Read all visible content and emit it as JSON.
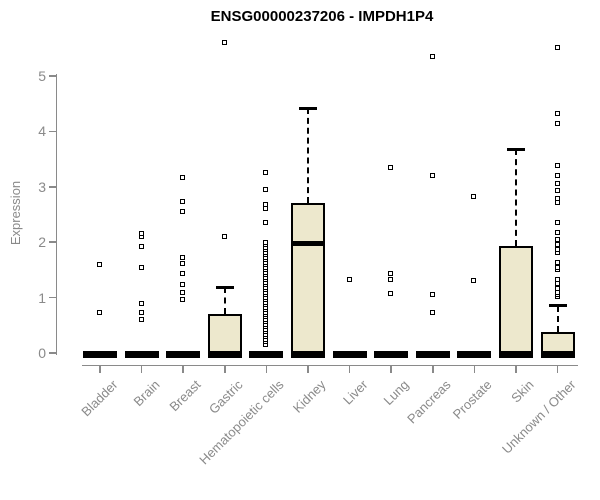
{
  "chart_data": {
    "type": "boxplot",
    "title": "ENSG00000237206 - IMPDH1P4",
    "ylabel": "Expression",
    "ylim": [
      0,
      5
    ],
    "yticks": [
      0,
      1,
      2,
      3,
      4,
      5
    ],
    "grid": false,
    "legend": false,
    "categories": [
      "Bladder",
      "Brain",
      "Breast",
      "Gastric",
      "Hematopoietic cells",
      "Kidney",
      "Liver",
      "Lung",
      "Pancreas",
      "Prostate",
      "Skin",
      "Unknown / Other"
    ],
    "series": [
      {
        "category": "Bladder",
        "q1": 0,
        "median": 0,
        "q3": 0,
        "whisker_low": 0,
        "whisker_high": 0,
        "outliers": [
          0.74,
          1.6
        ]
      },
      {
        "category": "Brain",
        "q1": 0,
        "median": 0,
        "q3": 0,
        "whisker_low": 0,
        "whisker_high": 0,
        "outliers": [
          0.6,
          0.74,
          0.9,
          1.55,
          1.93,
          2.11,
          2.15
        ]
      },
      {
        "category": "Breast",
        "q1": 0,
        "median": 0,
        "q3": 0,
        "whisker_low": 0,
        "whisker_high": 0,
        "outliers": [
          0.96,
          1.1,
          1.23,
          1.44,
          1.62,
          1.72,
          2.56,
          2.73,
          3.16
        ]
      },
      {
        "category": "Gastric",
        "q1": 0,
        "median": 0,
        "q3": 0.71,
        "whisker_low": 0,
        "whisker_high": 1.19,
        "outliers": [
          2.11,
          5.6
        ]
      },
      {
        "category": "Hematopoietic cells",
        "q1": 0,
        "median": 0,
        "q3": 0,
        "whisker_low": 0,
        "whisker_high": 0,
        "outliers": [
          0.16,
          0.2,
          0.25,
          0.29,
          0.34,
          0.38,
          0.43,
          0.47,
          0.52,
          0.56,
          0.61,
          0.65,
          0.7,
          0.74,
          0.79,
          0.83,
          0.88,
          0.92,
          0.97,
          1.01,
          1.06,
          1.1,
          1.15,
          1.19,
          1.24,
          1.28,
          1.33,
          1.37,
          1.42,
          1.46,
          1.51,
          1.55,
          1.6,
          1.64,
          1.69,
          1.73,
          1.78,
          1.82,
          1.87,
          1.91,
          1.96,
          2.0,
          2.35,
          2.6,
          2.68,
          2.95,
          3.25
        ]
      },
      {
        "category": "Kidney",
        "q1": 0,
        "median": 1.98,
        "q3": 2.71,
        "whisker_low": 0,
        "whisker_high": 4.42,
        "outliers": []
      },
      {
        "category": "Liver",
        "q1": 0,
        "median": 0,
        "q3": 0,
        "whisker_low": 0,
        "whisker_high": 0,
        "outliers": [
          1.32
        ]
      },
      {
        "category": "Lung",
        "q1": 0,
        "median": 0,
        "q3": 0,
        "whisker_low": 0,
        "whisker_high": 0,
        "outliers": [
          1.08,
          1.32,
          1.44,
          3.34
        ]
      },
      {
        "category": "Pancreas",
        "q1": 0,
        "median": 0,
        "q3": 0,
        "whisker_low": 0,
        "whisker_high": 0,
        "outliers": [
          0.74,
          1.05,
          3.2,
          5.36
        ]
      },
      {
        "category": "Prostate",
        "q1": 0,
        "median": 0,
        "q3": 0,
        "whisker_low": 0,
        "whisker_high": 0,
        "outliers": [
          1.3,
          2.83
        ]
      },
      {
        "category": "Skin",
        "q1": 0,
        "median": 0,
        "q3": 1.93,
        "whisker_low": 0,
        "whisker_high": 3.68,
        "outliers": []
      },
      {
        "category": "Unknown / Other",
        "q1": 0,
        "median": 0,
        "q3": 0.38,
        "whisker_low": 0,
        "whisker_high": 0.85,
        "outliers": [
          1.02,
          1.05,
          1.1,
          1.17,
          1.26,
          1.32,
          1.5,
          1.55,
          1.64,
          1.81,
          1.86,
          1.95,
          2.04,
          2.18,
          2.36,
          2.71,
          2.79,
          2.93,
          3.06,
          3.2,
          3.38,
          4.15,
          4.33,
          5.51
        ]
      }
    ],
    "colors": {
      "box_fill": "#ede8cd",
      "box_border": "#000000",
      "median": "#000000",
      "outlier": "#000000",
      "axis": "#8a8a8a",
      "tick_label": "#8a8a8a",
      "title": "#000000"
    }
  }
}
